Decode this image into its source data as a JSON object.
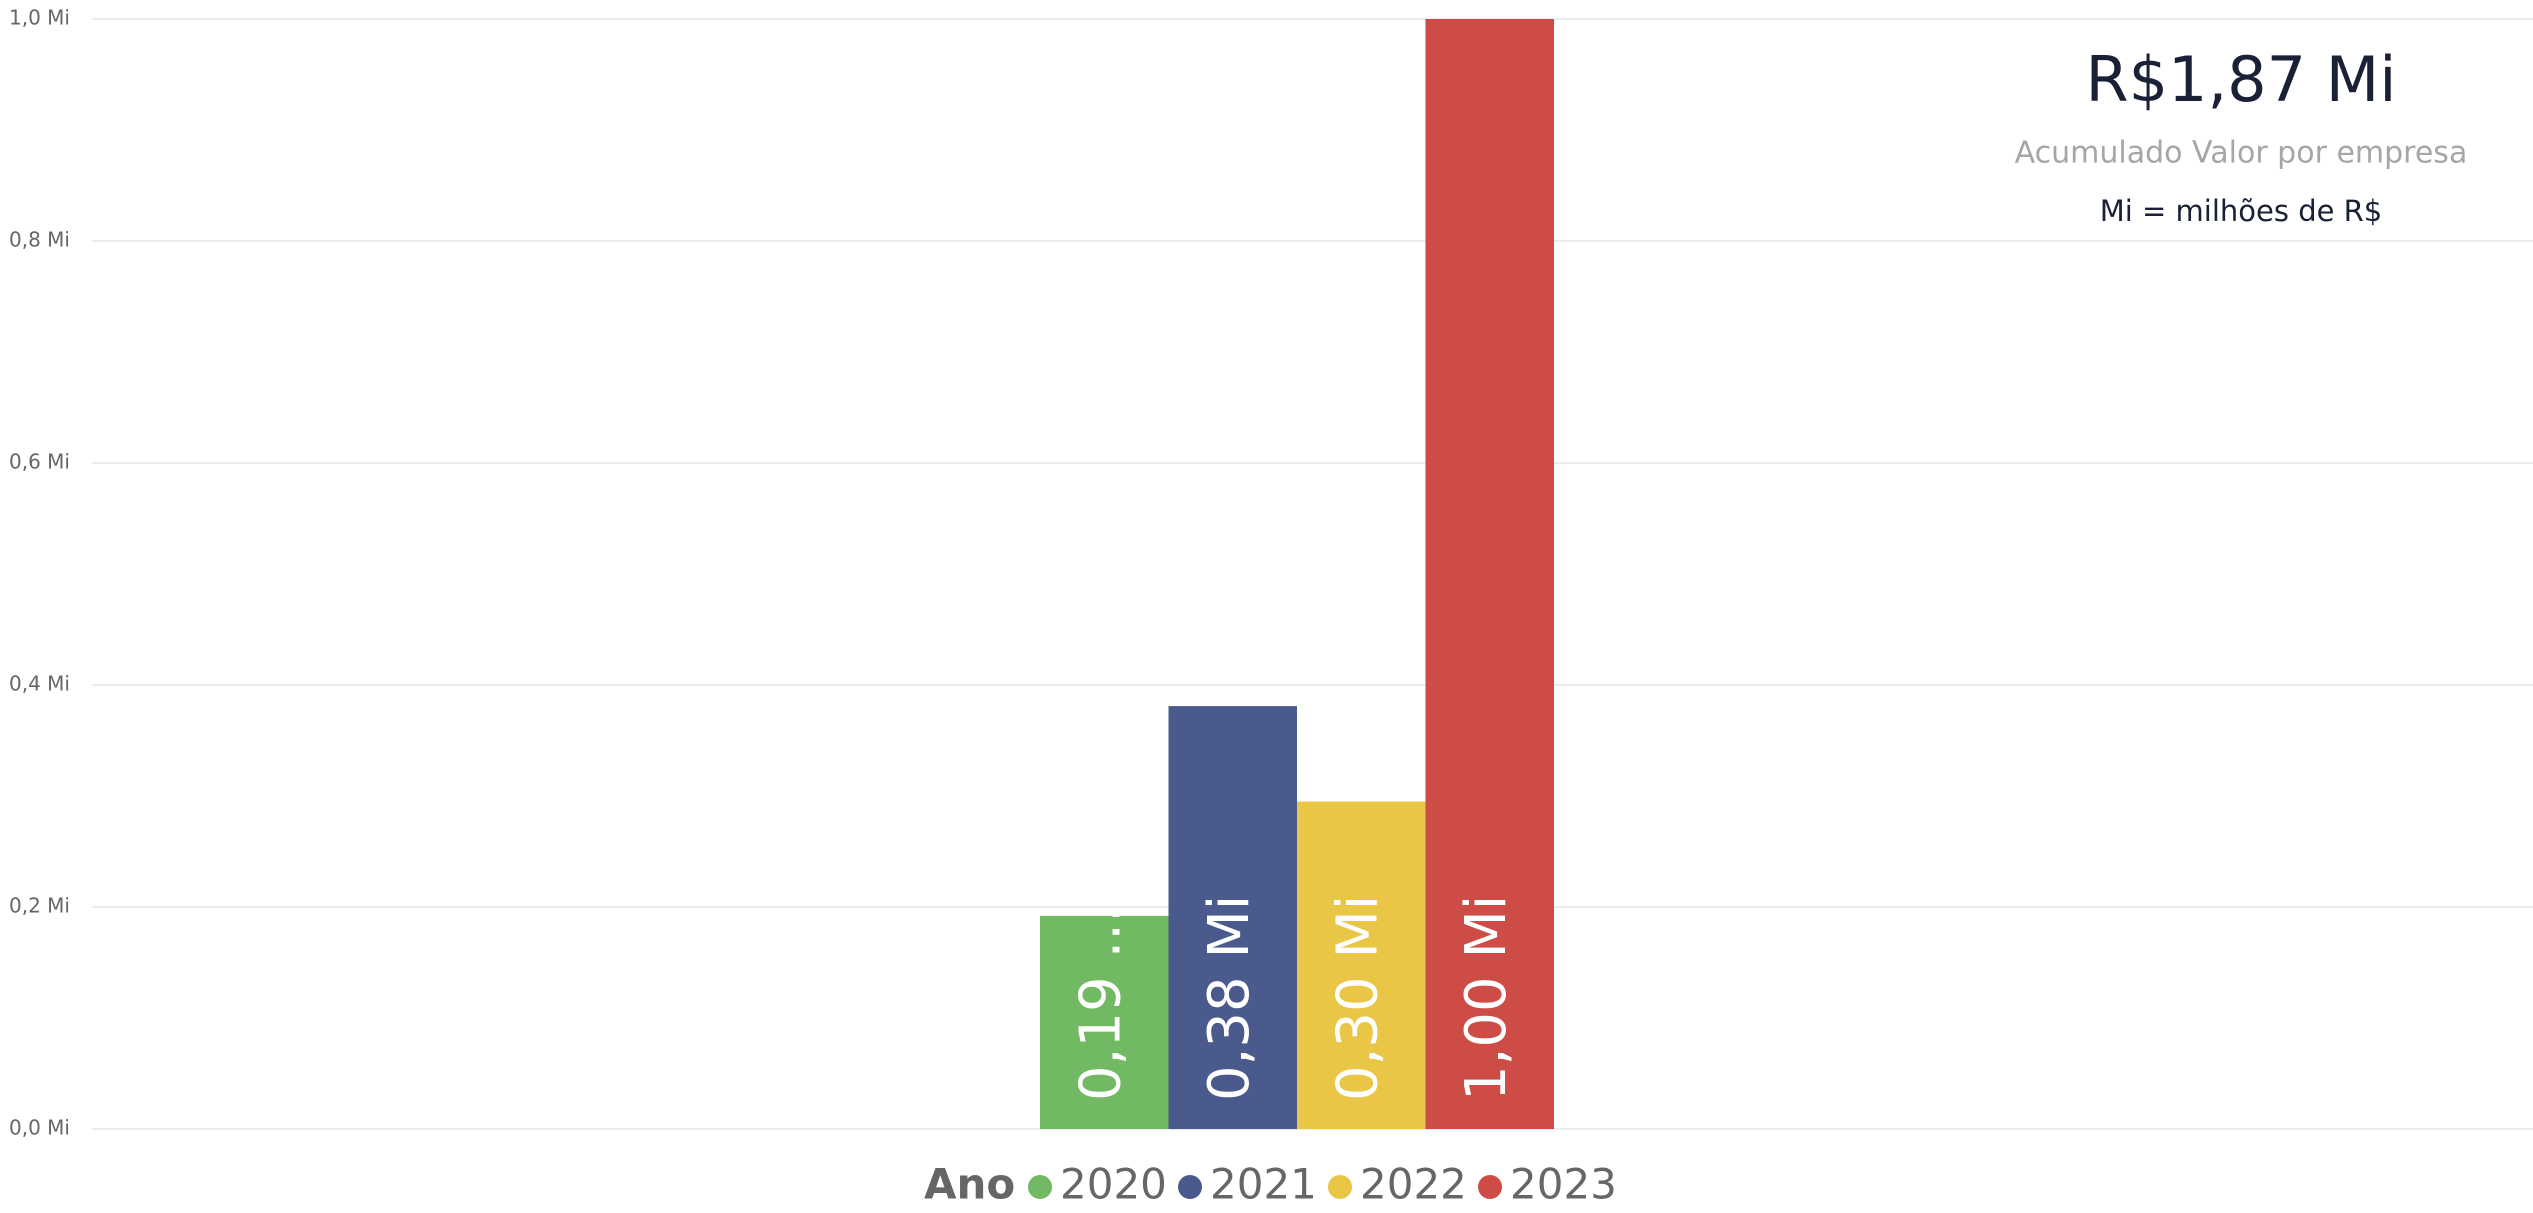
{
  "chart_data": {
    "type": "bar",
    "categories": [
      "2020",
      "2021",
      "2022",
      "2023"
    ],
    "values": [
      0.192,
      0.381,
      0.295,
      1.0
    ],
    "value_labels": [
      "0,19 ...",
      "0,38 Mi",
      "0,30 Mi",
      "1,00 Mi"
    ],
    "colors": [
      "#71b962",
      "#4a5a8c",
      "#eac646",
      "#cd4c46"
    ],
    "ylim": [
      0,
      1.0
    ],
    "yticks": [
      {
        "value": 0,
        "label": "0,0 Mi"
      },
      {
        "value": 0.2,
        "label": "0,2 Mi"
      },
      {
        "value": 0.4,
        "label": "0,4 Mi"
      },
      {
        "value": 0.6,
        "label": "0,6 Mi"
      },
      {
        "value": 0.8,
        "label": "0,8 Mi"
      },
      {
        "value": 1.0,
        "label": "1,0 Mi"
      }
    ],
    "grid": true,
    "legend_title": "Ano",
    "card": {
      "value": "R$1,87 Mi",
      "label": "Acumulado Valor por empresa",
      "note": "Mi = milhões de R$"
    }
  }
}
